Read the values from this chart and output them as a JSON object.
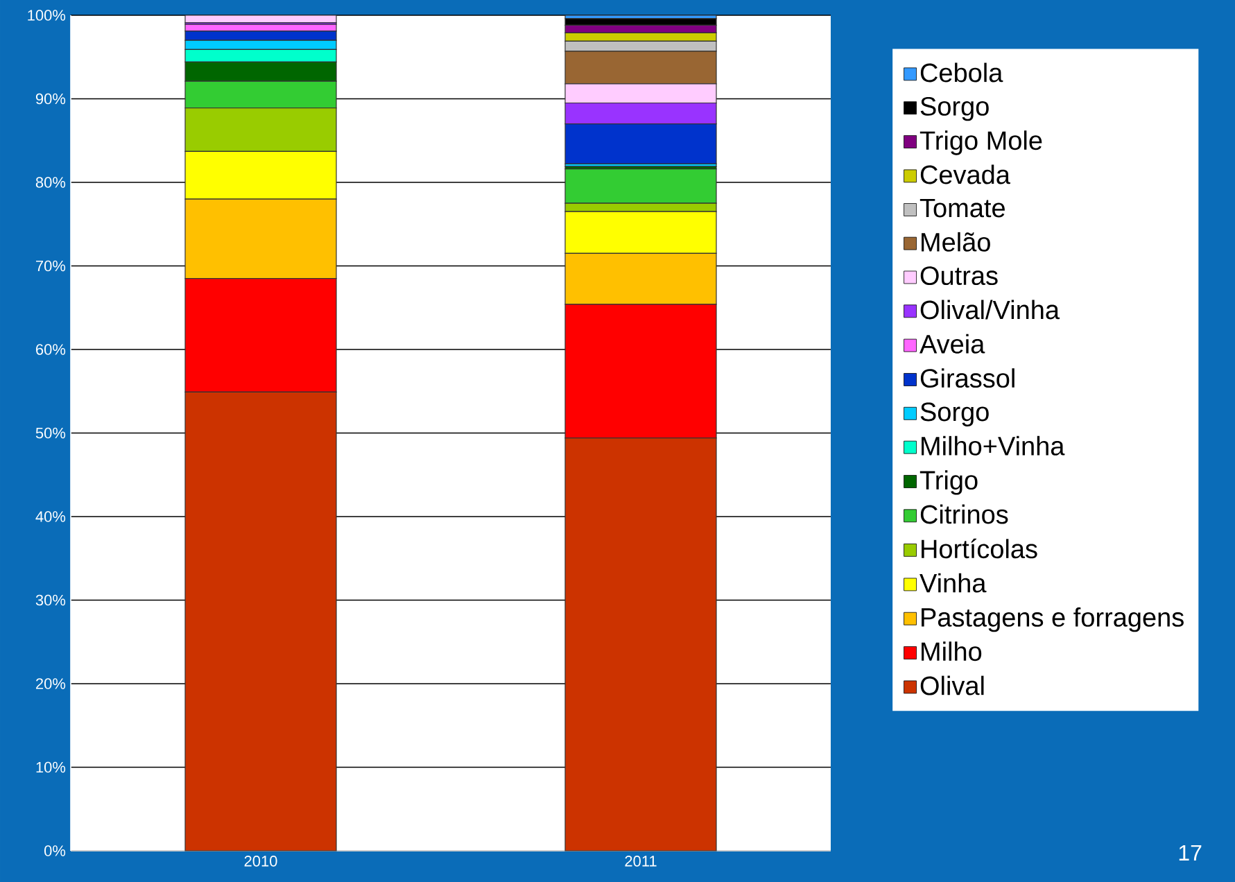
{
  "chart_data": {
    "type": "bar",
    "stacked": true,
    "categories": [
      "2010",
      "2011"
    ],
    "ylim": [
      0,
      100
    ],
    "yticks": [
      {
        "value": 0,
        "label": "0%"
      },
      {
        "value": 10,
        "label": "10%"
      },
      {
        "value": 20,
        "label": "20%"
      },
      {
        "value": 30,
        "label": "30%"
      },
      {
        "value": 40,
        "label": "40%"
      },
      {
        "value": 50,
        "label": "50%"
      },
      {
        "value": 60,
        "label": "60%"
      },
      {
        "value": 70,
        "label": "70%"
      },
      {
        "value": 80,
        "label": "80%"
      },
      {
        "value": 90,
        "label": "90%"
      },
      {
        "value": 100,
        "label": "100%"
      }
    ],
    "grid": "y",
    "legend": "right",
    "series": [
      {
        "name": "Olival",
        "color": "#cc3300",
        "values": [
          54.9,
          49.4
        ]
      },
      {
        "name": "Milho",
        "color": "#ff0000",
        "values": [
          13.6,
          16.0
        ]
      },
      {
        "name": "Pastagens e forragens",
        "color": "#ffc000",
        "values": [
          9.5,
          6.1
        ]
      },
      {
        "name": "Vinha",
        "color": "#ffff00",
        "values": [
          5.7,
          5.0
        ]
      },
      {
        "name": "Hortícolas",
        "color": "#99cc00",
        "values": [
          5.2,
          1.0
        ]
      },
      {
        "name": "Citrinos",
        "color": "#33cc33",
        "values": [
          3.2,
          4.1
        ]
      },
      {
        "name": "Trigo",
        "color": "#006600",
        "values": [
          2.3,
          0.3
        ]
      },
      {
        "name": "Milho+Vinha",
        "color": "#00ffcc",
        "values": [
          1.5,
          0
        ]
      },
      {
        "name": "Sorgo",
        "color": "#00ccff",
        "values": [
          1.1,
          0.3
        ]
      },
      {
        "name": "Girassol",
        "color": "#0033cc",
        "values": [
          1.1,
          4.8
        ]
      },
      {
        "name": "Aveia",
        "color": "#ff66ff",
        "values": [
          0.8,
          0
        ]
      },
      {
        "name": "Olival/Vinha",
        "color": "#9933ff",
        "values": [
          0.2,
          2.5
        ]
      },
      {
        "name": "Outras",
        "color": "#ffccff",
        "values": [
          0.9,
          2.3
        ]
      },
      {
        "name": "Melão",
        "color": "#996633",
        "values": [
          0,
          3.9
        ]
      },
      {
        "name": "Tomate",
        "color": "#c0c0c0",
        "values": [
          0,
          1.2
        ]
      },
      {
        "name": "Cevada",
        "color": "#cccc00",
        "values": [
          0,
          1.0
        ]
      },
      {
        "name": "Trigo Mole",
        "color": "#800080",
        "values": [
          0,
          0.9
        ]
      },
      {
        "name": "Sorgo",
        "color": "#000000",
        "values": [
          0,
          0.8
        ]
      },
      {
        "name": "Cebola",
        "color": "#3399ff",
        "values": [
          0,
          0.4
        ]
      }
    ],
    "annotations": [
      "17"
    ]
  }
}
